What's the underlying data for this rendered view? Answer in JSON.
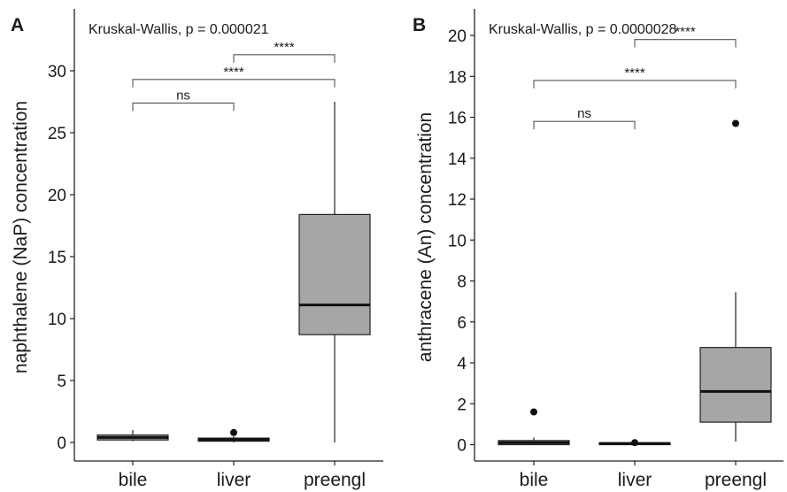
{
  "chart_data": [
    {
      "type": "boxplot",
      "panel_label": "A",
      "annotation": "Kruskal-Wallis, p = 0.000021",
      "ylabel": "naphthalene (NaP) concentration",
      "xlabel": "",
      "ylim": [
        -1.5,
        35
      ],
      "yticks": [
        0,
        5,
        10,
        15,
        20,
        25,
        30
      ],
      "categories": [
        "bile",
        "liver",
        "preengl"
      ],
      "boxes": [
        {
          "group": "bile",
          "min": 0.1,
          "q1": 0.2,
          "median": 0.4,
          "q3": 0.6,
          "max": 1.0,
          "outliers": [],
          "fill": "#a6a6a6"
        },
        {
          "group": "liver",
          "min": 0.0,
          "q1": 0.1,
          "median": 0.25,
          "q3": 0.35,
          "max": 0.5,
          "outliers": [
            0.8
          ],
          "fill": "#a6a6a6"
        },
        {
          "group": "preengl",
          "min": 0.0,
          "q1": 8.7,
          "median": 11.1,
          "q3": 18.4,
          "max": 27.5,
          "outliers": [],
          "fill": "#a6a6a6"
        }
      ],
      "comparisons": [
        {
          "from": "bile",
          "to": "liver",
          "label": "ns",
          "y": 27.4
        },
        {
          "from": "bile",
          "to": "preengl",
          "label": "****",
          "y": 29.3
        },
        {
          "from": "liver",
          "to": "preengl",
          "label": "****",
          "y": 31.3
        }
      ],
      "grid": false,
      "legend": "none"
    },
    {
      "type": "boxplot",
      "panel_label": "B",
      "annotation": "Kruskal-Wallis, p = 0.0000028",
      "ylabel": "anthracene (An) concentration",
      "xlabel": "",
      "ylim": [
        -0.8,
        21.3
      ],
      "yticks": [
        0,
        2,
        4,
        6,
        8,
        10,
        12,
        14,
        16,
        18,
        20
      ],
      "categories": [
        "bile",
        "liver",
        "preengl"
      ],
      "boxes": [
        {
          "group": "bile",
          "min": 0.0,
          "q1": 0.0,
          "median": 0.1,
          "q3": 0.2,
          "max": 0.35,
          "outliers": [
            1.6
          ],
          "fill": "#a6a6a6"
        },
        {
          "group": "liver",
          "min": 0.0,
          "q1": 0.0,
          "median": 0.05,
          "q3": 0.1,
          "max": 0.15,
          "outliers": [
            0.1
          ],
          "fill": "#a6a6a6"
        },
        {
          "group": "preengl",
          "min": 0.15,
          "q1": 1.1,
          "median": 2.6,
          "q3": 4.75,
          "max": 7.45,
          "outliers": [
            15.7
          ],
          "fill": "#a6a6a6"
        }
      ],
      "comparisons": [
        {
          "from": "bile",
          "to": "liver",
          "label": "ns",
          "y": 15.8
        },
        {
          "from": "bile",
          "to": "preengl",
          "label": "****",
          "y": 17.8
        },
        {
          "from": "liver",
          "to": "preengl",
          "label": "****",
          "y": 19.8
        }
      ],
      "grid": false,
      "legend": "none"
    }
  ]
}
